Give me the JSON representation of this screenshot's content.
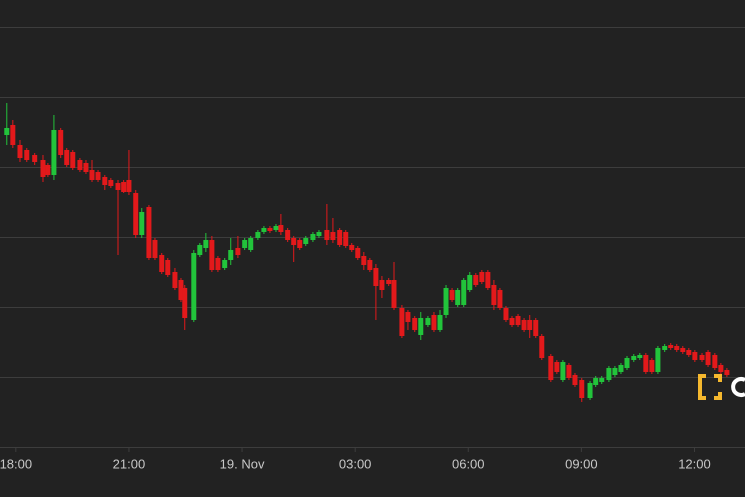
{
  "chart_data": {
    "type": "candlestick",
    "up_color": "#22c43b",
    "down_color": "#e3191b",
    "grid": true,
    "xlim": [
      -0.42,
      19.34
    ],
    "xticks": [
      {
        "value": 0,
        "label": "18:00"
      },
      {
        "value": 3,
        "label": "21:00"
      },
      {
        "value": 6,
        "label": "19. Nov"
      },
      {
        "value": 9,
        "label": "03:00"
      },
      {
        "value": 12,
        "label": "06:00"
      },
      {
        "value": 15,
        "label": "09:00"
      },
      {
        "value": 18,
        "label": "12:00"
      }
    ],
    "ylim": [
      0,
      448
    ],
    "ygrid": [
      0,
      70,
      140,
      210,
      280,
      350,
      420
    ],
    "x": [
      -0.24,
      -0.08,
      0.11,
      0.29,
      0.5,
      0.72,
      0.85,
      1.01,
      1.19,
      1.35,
      1.51,
      1.7,
      1.86,
      2.02,
      2.18,
      2.36,
      2.52,
      2.71,
      2.86,
      3.0,
      3.18,
      3.34,
      3.53,
      3.69,
      3.87,
      4.03,
      4.22,
      4.38,
      4.48,
      4.72,
      4.88,
      5.04,
      5.2,
      5.36,
      5.54,
      5.7,
      5.89,
      6.07,
      6.23,
      6.42,
      6.58,
      6.74,
      6.9,
      7.03,
      7.21,
      7.37,
      7.53,
      7.69,
      7.88,
      8.04,
      8.25,
      8.41,
      8.59,
      8.75,
      8.91,
      9.07,
      9.23,
      9.39,
      9.55,
      9.71,
      9.89,
      10.03,
      10.24,
      10.4,
      10.58,
      10.74,
      10.93,
      11.09,
      11.25,
      11.41,
      11.57,
      11.72,
      11.88,
      12.04,
      12.2,
      12.36,
      12.52,
      12.68,
      12.84,
      13.0,
      13.16,
      13.32,
      13.48,
      13.63,
      13.79,
      13.95,
      14.19,
      14.35,
      14.51,
      14.67,
      14.83,
      15.01,
      15.23,
      15.38,
      15.54,
      15.73,
      15.89,
      16.05,
      16.21,
      16.39,
      16.55,
      16.71,
      16.87,
      17.03,
      17.21,
      17.37,
      17.53,
      17.69,
      17.85,
      18.01,
      18.2,
      18.36,
      18.54,
      18.7,
      18.86
    ],
    "open": [
      313,
      323,
      303,
      298,
      293,
      288,
      283,
      273,
      318,
      298,
      296,
      288,
      285,
      278,
      276,
      271,
      268,
      265,
      266,
      268,
      255,
      213,
      241,
      208,
      193,
      188,
      176,
      168,
      160,
      128,
      193,
      200,
      208,
      190,
      180,
      188,
      200,
      200,
      198,
      210,
      216,
      220,
      218,
      223,
      218,
      210,
      208,
      204,
      208,
      212,
      218,
      216,
      218,
      216,
      203,
      200,
      192,
      188,
      180,
      168,
      168,
      168,
      140,
      136,
      130,
      113,
      123,
      133,
      118,
      133,
      158,
      143,
      143,
      158,
      173,
      176,
      176,
      163,
      158,
      140,
      130,
      132,
      128,
      128,
      128,
      112,
      92,
      86,
      68,
      83,
      73,
      68,
      50,
      63,
      66,
      68,
      73,
      76,
      80,
      88,
      90,
      93,
      88,
      76,
      98,
      103,
      102,
      100,
      98,
      96,
      93,
      96,
      93,
      83,
      78
    ],
    "close": [
      320,
      303,
      290,
      288,
      286,
      271,
      273,
      318,
      293,
      283,
      280,
      278,
      276,
      268,
      268,
      263,
      262,
      258,
      256,
      256,
      213,
      236,
      190,
      190,
      176,
      173,
      160,
      148,
      130,
      195,
      203,
      208,
      178,
      178,
      188,
      198,
      193,
      208,
      210,
      216,
      220,
      217,
      222,
      216,
      208,
      203,
      200,
      210,
      214,
      216,
      208,
      208,
      203,
      202,
      198,
      190,
      183,
      178,
      162,
      158,
      164,
      140,
      112,
      126,
      118,
      130,
      130,
      118,
      133,
      160,
      148,
      158,
      168,
      173,
      163,
      166,
      160,
      143,
      140,
      128,
      123,
      123,
      118,
      118,
      112,
      90,
      68,
      76,
      86,
      70,
      63,
      50,
      65,
      70,
      70,
      80,
      80,
      83,
      90,
      92,
      93,
      76,
      76,
      100,
      102,
      100,
      98,
      96,
      93,
      88,
      88,
      83,
      80,
      76,
      73
    ],
    "high": [
      345,
      328,
      308,
      300,
      295,
      293,
      285,
      333,
      320,
      300,
      298,
      290,
      288,
      288,
      278,
      273,
      270,
      268,
      268,
      298,
      258,
      240,
      243,
      210,
      195,
      190,
      180,
      170,
      163,
      198,
      205,
      215,
      212,
      192,
      190,
      210,
      212,
      210,
      212,
      218,
      222,
      222,
      224,
      234,
      220,
      212,
      210,
      212,
      216,
      218,
      244,
      230,
      220,
      218,
      205,
      202,
      196,
      190,
      184,
      172,
      170,
      186,
      143,
      138,
      132,
      136,
      132,
      136,
      138,
      163,
      160,
      160,
      170,
      176,
      175,
      178,
      178,
      168,
      160,
      142,
      132,
      134,
      130,
      133,
      130,
      114,
      94,
      88,
      88,
      85,
      75,
      70,
      67,
      72,
      72,
      82,
      82,
      85,
      92,
      94,
      95,
      95,
      90,
      102,
      104,
      105,
      104,
      102,
      100,
      98,
      95,
      98,
      95,
      85,
      80
    ],
    "low": [
      303,
      300,
      286,
      286,
      283,
      266,
      271,
      268,
      290,
      281,
      278,
      276,
      274,
      266,
      266,
      258,
      260,
      193,
      255,
      253,
      210,
      210,
      188,
      188,
      174,
      171,
      158,
      146,
      118,
      126,
      191,
      196,
      176,
      176,
      178,
      183,
      190,
      198,
      196,
      208,
      214,
      215,
      216,
      213,
      206,
      186,
      198,
      202,
      206,
      210,
      203,
      205,
      201,
      200,
      196,
      188,
      178,
      176,
      128,
      150,
      162,
      138,
      110,
      118,
      116,
      108,
      121,
      116,
      116,
      130,
      146,
      141,
      141,
      156,
      161,
      164,
      158,
      138,
      138,
      126,
      121,
      121,
      116,
      110,
      110,
      88,
      66,
      74,
      66,
      68,
      61,
      46,
      48,
      61,
      64,
      66,
      71,
      74,
      78,
      86,
      88,
      74,
      74,
      74,
      96,
      98,
      96,
      94,
      91,
      86,
      86,
      81,
      78,
      74,
      71
    ]
  }
}
